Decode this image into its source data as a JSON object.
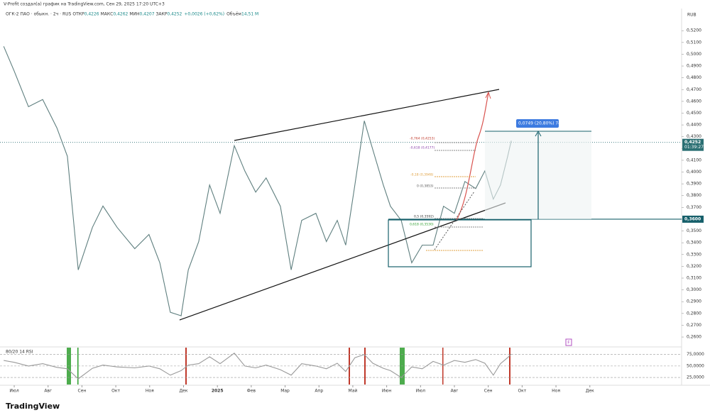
{
  "header": {
    "attribution": "V-Profit создал(а) график на TradingView.com, Сен 29, 2025 17:20 UTC+3",
    "currency": "RUB",
    "brand": "TradingView"
  },
  "legend": {
    "symbol": "ОГК-2 ПАО · обыкн. · 2ч · RUS",
    "items": [
      {
        "label": "ОТКР",
        "value": "0,4226"
      },
      {
        "label": "МАКС",
        "value": "0,4262"
      },
      {
        "label": "МИН",
        "value": "0,4207"
      },
      {
        "label": "ЗАКР",
        "value": "0,4252"
      }
    ],
    "change": "+0,0026 (+0,62%)",
    "volume_label": "Объём",
    "volume": "14,51 M"
  },
  "chart_data": [
    {
      "type": "line",
      "x": [
        -0.31,
        0,
        0.42,
        0.84,
        1.26,
        1.57,
        1.89,
        2.31,
        2.62,
        3.04,
        3.56,
        3.98,
        4.3,
        4.61,
        4.93,
        5.14,
        5.45,
        5.77,
        6.08,
        6.5,
        6.81,
        7.13,
        7.44,
        7.86,
        8.18,
        8.49,
        8.91,
        9.22,
        9.54,
        9.79,
        10.06,
        10.34,
        10.59,
        10.9,
        11.11,
        11.43,
        11.74,
        12.05,
        12.37,
        12.68,
        13,
        13.31,
        13.63,
        13.9,
        14.15,
        14.36,
        14.57,
        14.68
      ],
      "series": [
        {
          "color": "#5f7f7f",
          "values": [
            0.5067,
            0.4857,
            0.4555,
            0.4616,
            0.4375,
            0.4134,
            0.317,
            0.3531,
            0.3712,
            0.353,
            0.335,
            0.347,
            0.323,
            0.281,
            0.278,
            0.317,
            0.341,
            0.389,
            0.365,
            0.4224,
            0.401,
            0.383,
            0.395,
            0.371,
            0.317,
            0.359,
            0.365,
            0.341,
            0.359,
            0.338,
            0.389,
            0.4435,
            0.419,
            0.389,
            0.371,
            0.359,
            0.323,
            0.338,
            0.338,
            0.371,
            0.365,
            0.392,
            0.386,
            0.401,
            0.377,
            0.389,
            0.413,
            0.4266
          ]
        }
      ],
      "xlim": [
        -0.42,
        19.71
      ],
      "xticks": [
        {
          "value": 0,
          "label": "Июл"
        },
        {
          "value": 1,
          "label": "Авг"
        },
        {
          "value": 2,
          "label": "Сен"
        },
        {
          "value": 3,
          "label": "Окт"
        },
        {
          "value": 4,
          "label": "Ноя"
        },
        {
          "value": 5,
          "label": "Дек"
        },
        {
          "value": 6,
          "label": "2025"
        },
        {
          "value": 7,
          "label": "Фев"
        },
        {
          "value": 8,
          "label": "Мар"
        },
        {
          "value": 9,
          "label": "Апр"
        },
        {
          "value": 10,
          "label": "Май"
        },
        {
          "value": 11,
          "label": "Июн"
        },
        {
          "value": 12,
          "label": "Июл"
        },
        {
          "value": 13,
          "label": "Авг"
        },
        {
          "value": 14,
          "label": "Сен"
        },
        {
          "value": 15,
          "label": "Окт"
        },
        {
          "value": 16,
          "label": "Ноя"
        },
        {
          "value": 17,
          "label": "Дек"
        }
      ],
      "ylim": [
        0.254,
        0.537
      ],
      "yticks": [
        {
          "value": 0.26,
          "label": "0,2600"
        },
        {
          "value": 0.27,
          "label": "0,2700"
        },
        {
          "value": 0.28,
          "label": "0,2800"
        },
        {
          "value": 0.29,
          "label": "0,2900"
        },
        {
          "value": 0.3,
          "label": "0,3000"
        },
        {
          "value": 0.31,
          "label": "0,3100"
        },
        {
          "value": 0.32,
          "label": "0,3200"
        },
        {
          "value": 0.33,
          "label": "0,3300"
        },
        {
          "value": 0.34,
          "label": "0,3400"
        },
        {
          "value": 0.35,
          "label": "0,3500"
        },
        {
          "value": 0.36,
          "label": "0,3600"
        },
        {
          "value": 0.37,
          "label": "0,3700"
        },
        {
          "value": 0.38,
          "label": "0,3800"
        },
        {
          "value": 0.39,
          "label": "0,3900"
        },
        {
          "value": 0.4,
          "label": "0,4000"
        },
        {
          "value": 0.41,
          "label": "0,4100"
        },
        {
          "value": 0.42,
          "label": "0,4200"
        },
        {
          "value": 0.43,
          "label": "0,4300"
        },
        {
          "value": 0.44,
          "label": "0,4400"
        },
        {
          "value": 0.45,
          "label": "0,4500"
        },
        {
          "value": 0.46,
          "label": "0,4600"
        },
        {
          "value": 0.47,
          "label": "0,4700"
        },
        {
          "value": 0.48,
          "label": "0,4800"
        },
        {
          "value": 0.49,
          "label": "0,4900"
        },
        {
          "value": 0.5,
          "label": "0,5000"
        },
        {
          "value": 0.51,
          "label": "0,5100"
        },
        {
          "value": 0.52,
          "label": "0,5200"
        }
      ],
      "price_labels": [
        {
          "value": 0.4252,
          "label": "0,4252",
          "color": "#2b6f73"
        },
        {
          "value": 0.36,
          "label": "0,3600",
          "color": "#17606b"
        }
      ],
      "timer": "01:39:27",
      "annotations": [
        "0,0749 (20,80%) 749",
        "-0,764 (0,4253)",
        "-0,618 (0,4177)",
        "-0,18 (0,3948)",
        "0 (0,3853)",
        "0,5 (0,3592)",
        "0,618 (0,3530)"
      ]
    },
    {
      "type": "line",
      "title": "80/20 14 RSI",
      "x": [
        -0.31,
        0,
        0.42,
        0.84,
        1.26,
        1.57,
        1.89,
        2.31,
        2.62,
        3.04,
        3.56,
        3.98,
        4.3,
        4.61,
        4.93,
        5.14,
        5.45,
        5.77,
        6.08,
        6.5,
        6.81,
        7.13,
        7.44,
        7.86,
        8.18,
        8.49,
        8.91,
        9.22,
        9.54,
        9.79,
        10.06,
        10.34,
        10.59,
        10.9,
        11.11,
        11.43,
        11.74,
        12.05,
        12.37,
        12.68,
        13,
        13.31,
        13.63,
        13.9,
        14.15,
        14.36,
        14.57,
        14.68
      ],
      "series": [
        {
          "color": "#9a9a9a",
          "values": [
            62,
            58,
            50,
            55,
            47,
            44,
            22,
            45,
            52,
            48,
            46,
            50,
            44,
            30,
            40,
            52,
            55,
            70,
            55,
            78,
            50,
            46,
            52,
            42,
            30,
            55,
            50,
            44,
            56,
            38,
            68,
            75,
            56,
            45,
            40,
            25,
            48,
            44,
            60,
            52,
            62,
            58,
            64,
            56,
            30,
            55,
            68,
            76
          ]
        }
      ],
      "xlim": [
        -0.42,
        19.71
      ],
      "ylim": [
        5,
        90
      ],
      "yticks": [
        {
          "value": 25,
          "label": "25,0000"
        },
        {
          "value": 50,
          "label": "50,0000"
        },
        {
          "value": 75,
          "label": "75,0000"
        }
      ]
    }
  ]
}
